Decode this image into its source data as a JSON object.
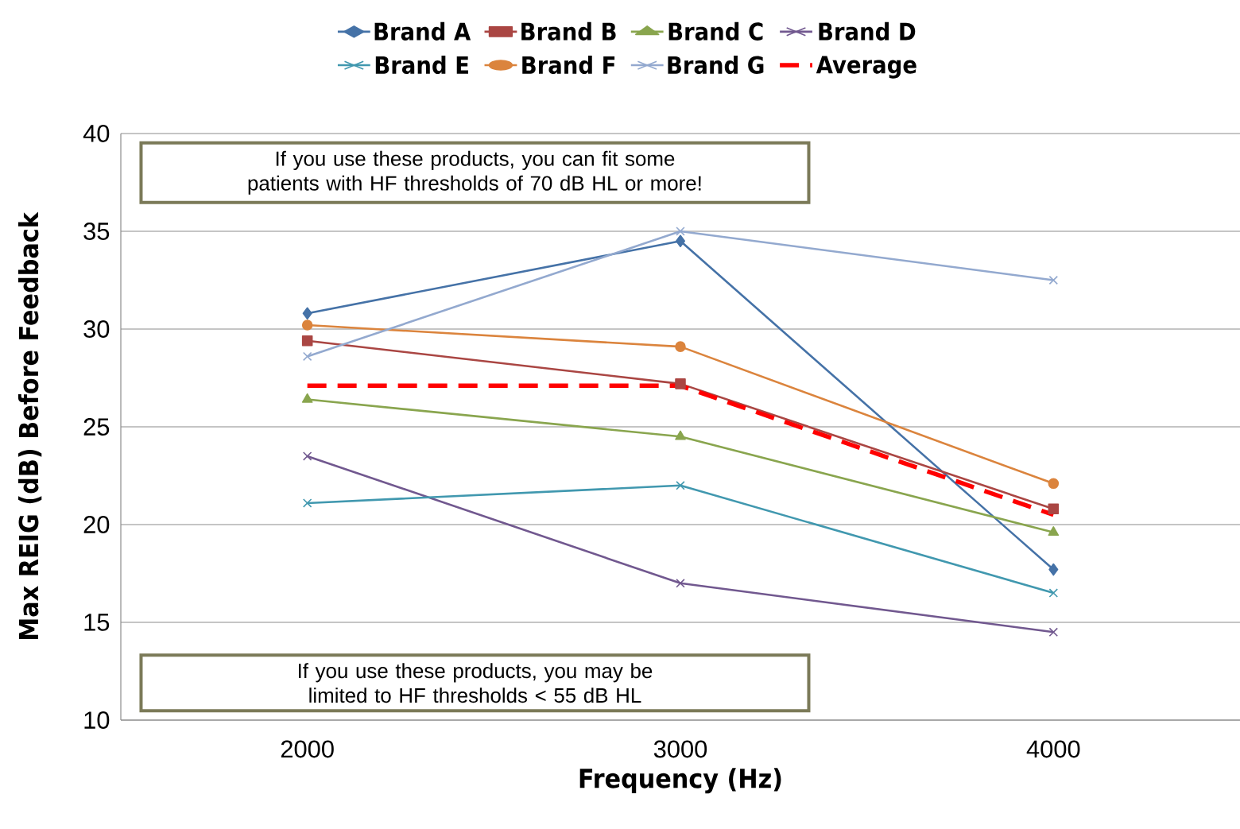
{
  "chart_data": {
    "type": "line",
    "categories": [
      "2000",
      "3000",
      "4000"
    ],
    "xlabel": "Frequency (Hz)",
    "ylabel": "Max REIG (dB) Before Feedback",
    "ylim": [
      10,
      40
    ],
    "yticks": [
      10,
      15,
      20,
      25,
      30,
      35,
      40
    ],
    "grid": "y",
    "legend": "top",
    "series": [
      {
        "name": "Brand A",
        "color": "#4572a7",
        "marker": "diamond",
        "values": [
          30.8,
          34.5,
          17.7
        ]
      },
      {
        "name": "Brand B",
        "color": "#aa4643",
        "marker": "square",
        "values": [
          29.4,
          27.2,
          20.8
        ]
      },
      {
        "name": "Brand C",
        "color": "#89a54e",
        "marker": "triangle",
        "values": [
          26.4,
          24.5,
          19.6
        ]
      },
      {
        "name": "Brand D",
        "color": "#71588f",
        "marker": "cross",
        "values": [
          23.5,
          17.0,
          14.5
        ]
      },
      {
        "name": "Brand E",
        "color": "#4198af",
        "marker": "cross",
        "values": [
          21.1,
          22.0,
          16.5
        ]
      },
      {
        "name": "Brand F",
        "color": "#db843d",
        "marker": "circle",
        "values": [
          30.2,
          29.1,
          22.1
        ]
      },
      {
        "name": "Brand G",
        "color": "#93a9cf",
        "marker": "cross",
        "values": [
          28.6,
          35.0,
          32.5
        ]
      },
      {
        "name": "Average",
        "color": "#ff0000",
        "marker": "none",
        "line_style": "dashed",
        "values": [
          27.1,
          27.1,
          20.5
        ]
      }
    ],
    "annotations": [
      "If you use these products, you can fit some patients with HF thresholds of 70 dB HL or more!",
      "If you use these products, you may be limited to HF thresholds < 55 dB HL"
    ]
  }
}
